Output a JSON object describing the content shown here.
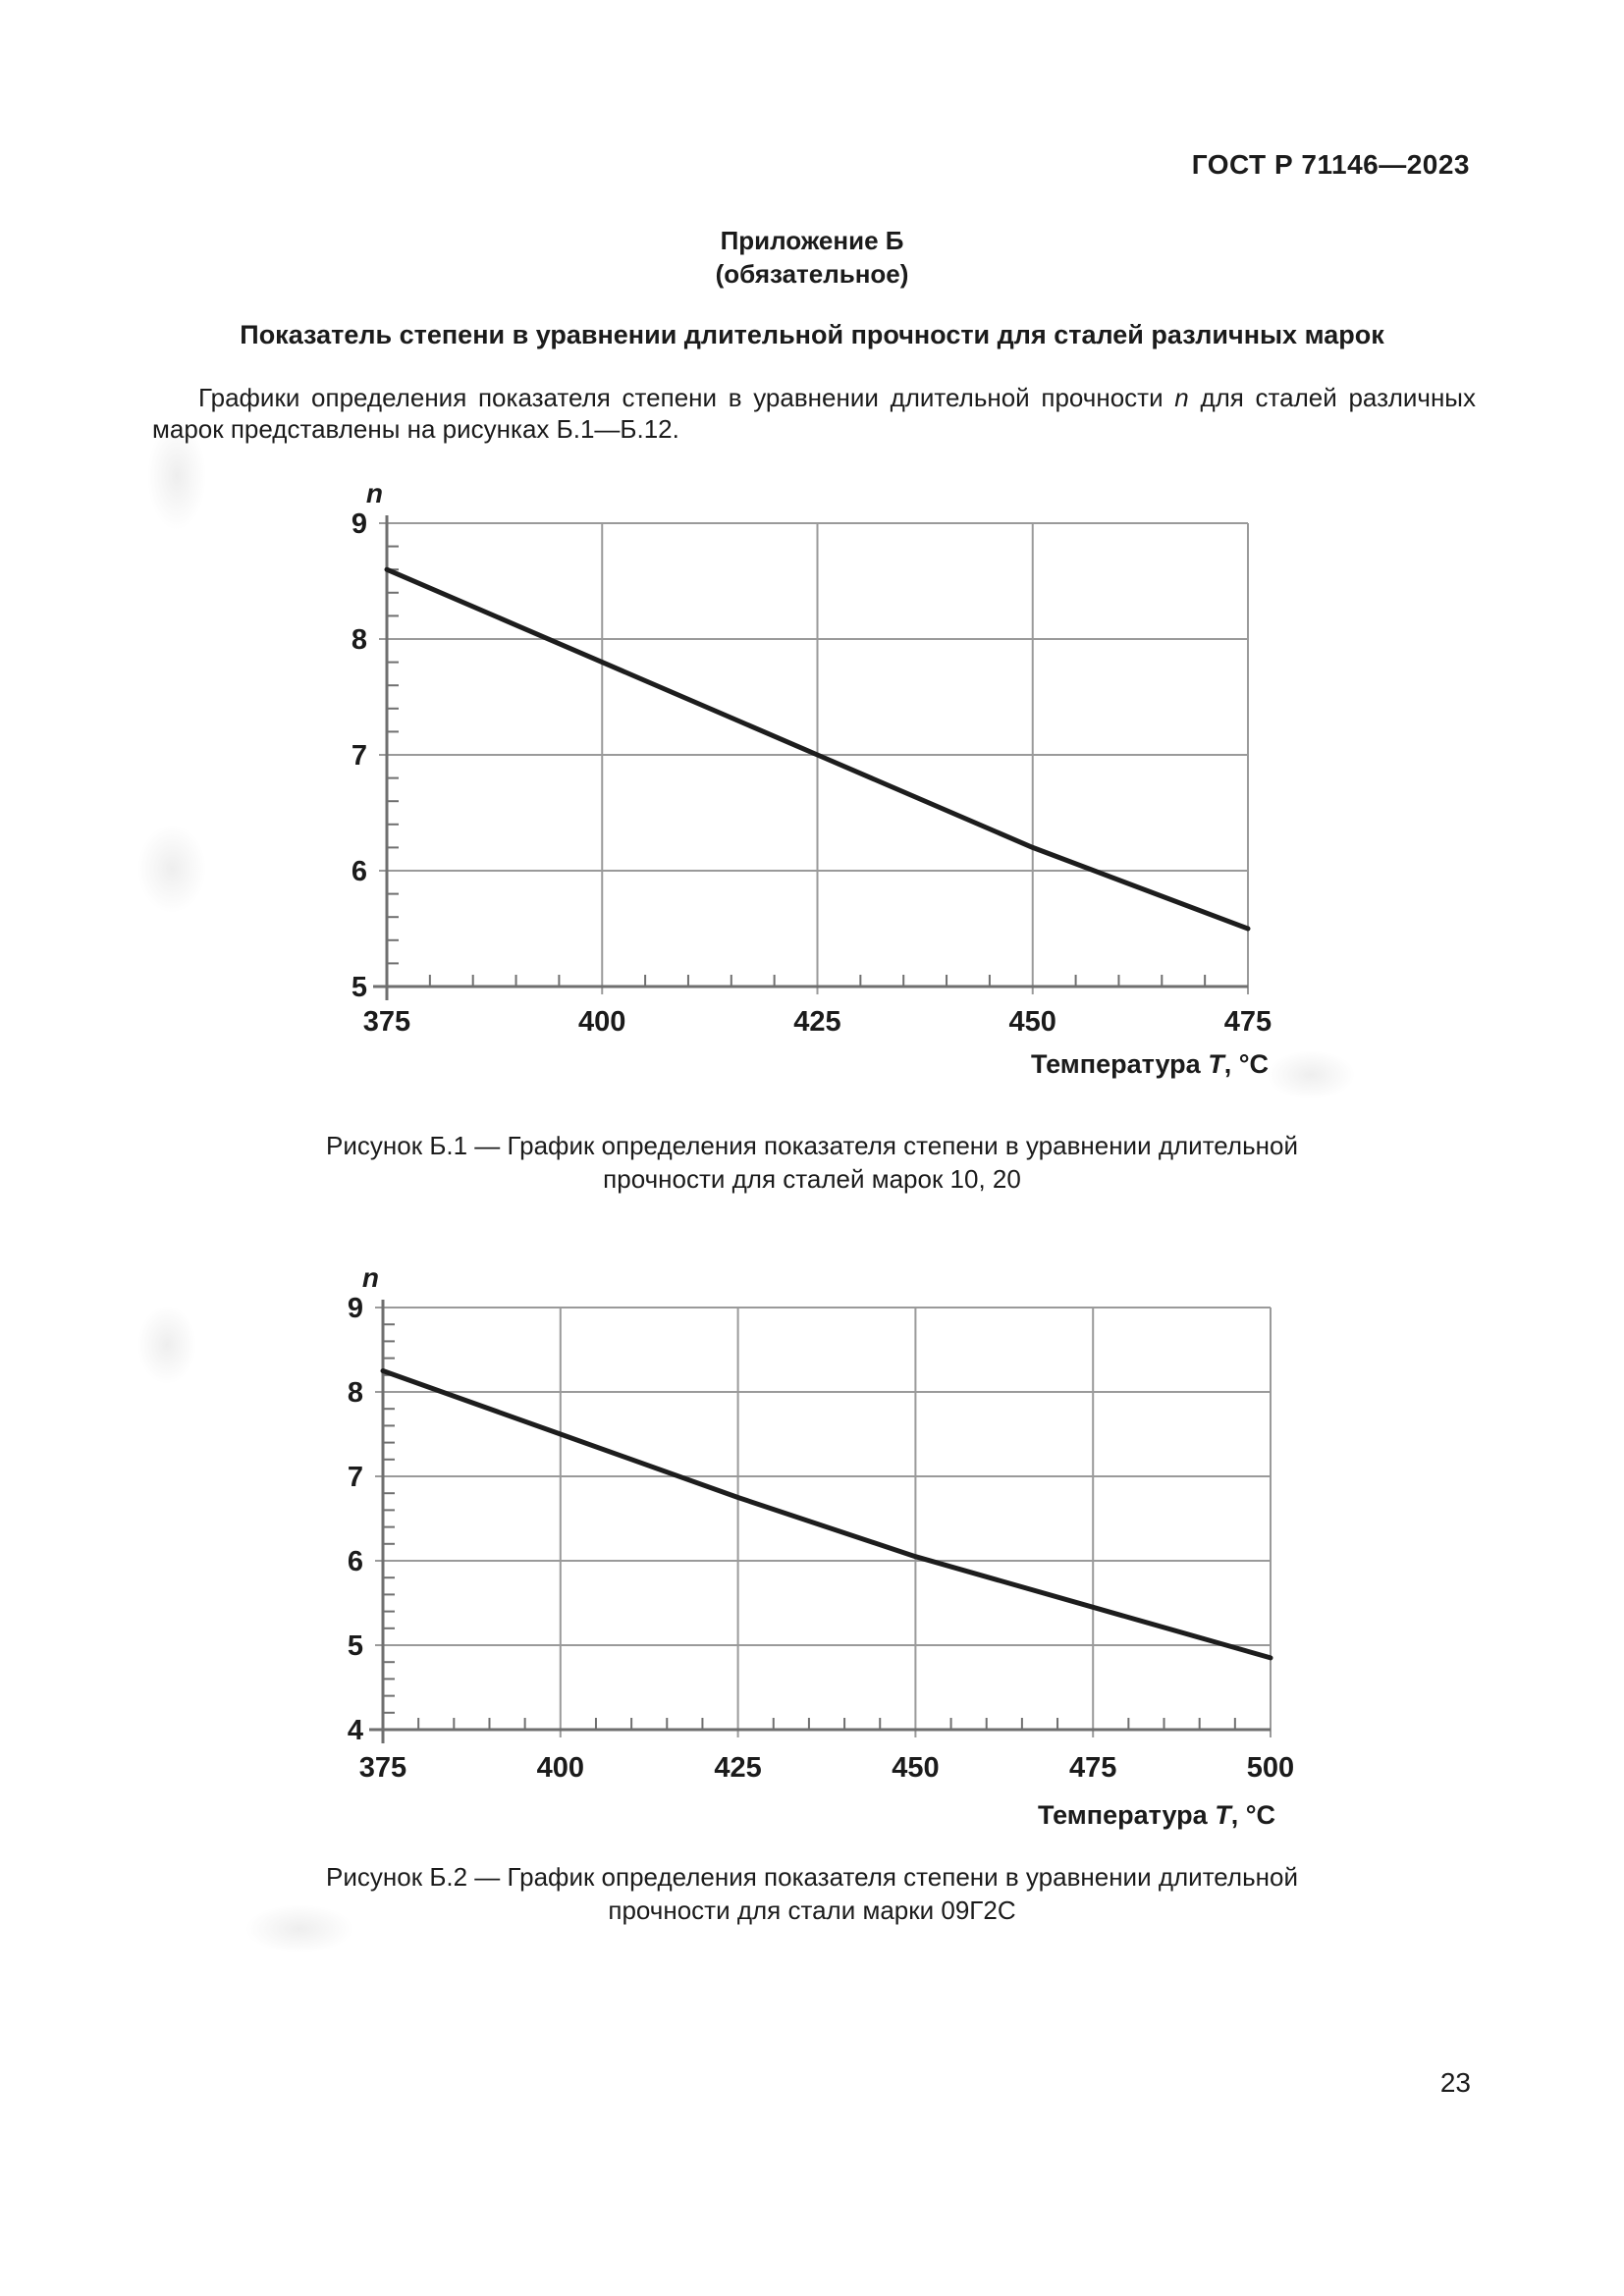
{
  "header": {
    "title": "ГОСТ Р 71146—2023"
  },
  "appendix": {
    "title": "Приложение Б",
    "subtitle": "(обязательное)"
  },
  "section": {
    "heading": "Показатель степени в уравнении длительной прочности для сталей различных марок"
  },
  "intro": {
    "part1": "Графики определения показателя степени в уравнении длительной прочности ",
    "symbol": "n",
    "part2": " для сталей различных марок представлены на рисунках Б.1—Б.12."
  },
  "footer": {
    "page_number": "23"
  },
  "chart_data": [
    {
      "type": "line",
      "title": "",
      "ylabel": "n",
      "xlabel": "Температура T, °C",
      "xlabel_parts": [
        {
          "text": "Температура ",
          "italic": false
        },
        {
          "text": "T",
          "italic": true
        },
        {
          "text": ", °C",
          "italic": false
        }
      ],
      "xlim": [
        375,
        475
      ],
      "ylim": [
        5,
        9
      ],
      "x_ticks": [
        375,
        400,
        425,
        450,
        475
      ],
      "y_ticks": [
        5,
        6,
        7,
        8,
        9
      ],
      "x_minor_step": 5,
      "y_minor_step": 0.2,
      "grid": true,
      "legend": "none",
      "x": [
        375,
        400,
        425,
        450,
        475
      ],
      "y": [
        8.6,
        7.8,
        7.0,
        6.2,
        5.5
      ],
      "caption": "Рисунок Б.1 — График определения показателя степени в уравнении длительной прочности для сталей марок 10, 20",
      "line_color": "#1d1d1d",
      "grid_color": "#9a9a9a",
      "axis_color": "#6f6f6f"
    },
    {
      "type": "line",
      "title": "",
      "ylabel": "n",
      "xlabel": "Температура T, °C",
      "xlabel_parts": [
        {
          "text": "Температура ",
          "italic": false
        },
        {
          "text": "T",
          "italic": true
        },
        {
          "text": ", °C",
          "italic": false
        }
      ],
      "xlim": [
        375,
        500
      ],
      "ylim": [
        4,
        9
      ],
      "x_ticks": [
        375,
        400,
        425,
        450,
        475,
        500
      ],
      "y_ticks": [
        4,
        5,
        6,
        7,
        8,
        9
      ],
      "x_minor_step": 5,
      "y_minor_step": 0.2,
      "grid": true,
      "legend": "none",
      "x": [
        375,
        400,
        425,
        450,
        475,
        500
      ],
      "y": [
        8.25,
        7.5,
        6.75,
        6.05,
        5.45,
        4.85
      ],
      "caption": "Рисунок Б.2 — График определения показателя степени в уравнении длительной прочности для стали марки 09Г2С",
      "line_color": "#1d1d1d",
      "grid_color": "#9a9a9a",
      "axis_color": "#6f6f6f"
    }
  ]
}
